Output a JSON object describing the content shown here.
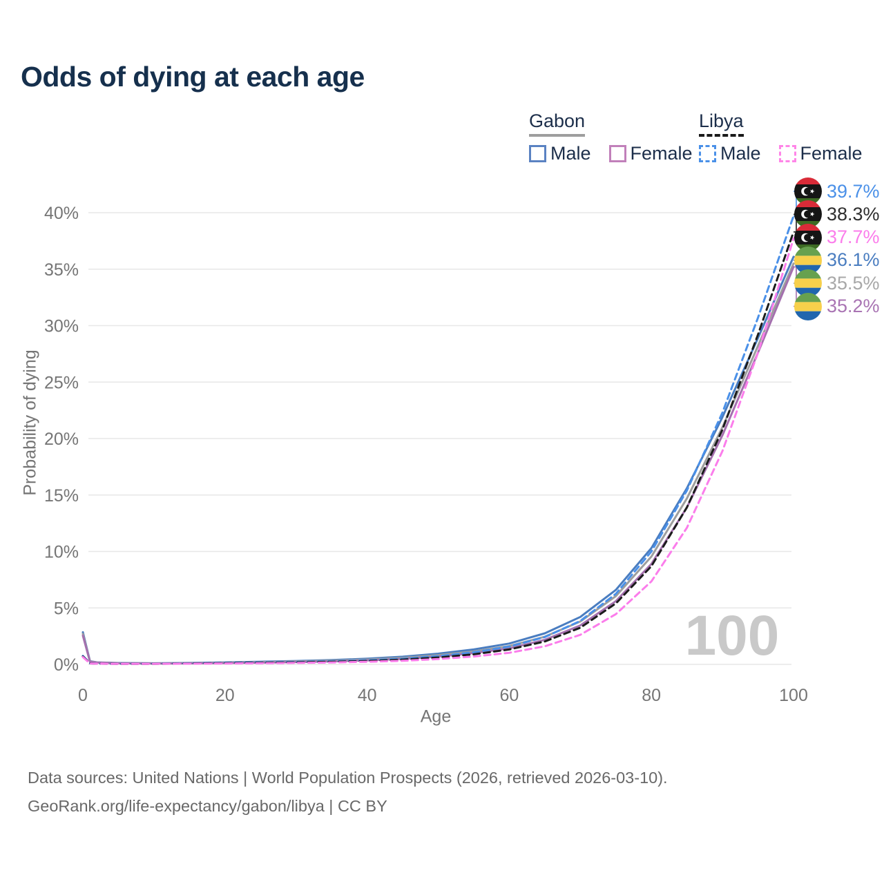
{
  "title": "Odds of dying at each age",
  "watermark_age": "100",
  "footer": {
    "line1": "Data sources: United Nations | World Population Prospects (2026, retrieved 2026-03-10).",
    "line2": "GeoRank.org/life-expectancy/gabon/libya | CC BY"
  },
  "legend": {
    "groups": [
      {
        "name": "Gabon",
        "underline_style": "solid",
        "underline_color": "#9e9e9e",
        "items": [
          {
            "label": "Male",
            "color": "#5a82c2",
            "dashed": false
          },
          {
            "label": "Female",
            "color": "#c180ba",
            "dashed": false
          }
        ]
      },
      {
        "name": "Libya",
        "underline_style": "dashed",
        "underline_color": "#1a1a1a",
        "items": [
          {
            "label": "Male",
            "color": "#4a90e8",
            "dashed": true
          },
          {
            "label": "Female",
            "color": "#ff85e8",
            "dashed": true
          }
        ]
      }
    ]
  },
  "flag_colors": {
    "libya": {
      "red": "#d92b38",
      "black": "#151515",
      "green": "#3e6b24",
      "white": "#ffffff"
    },
    "gabon": {
      "green": "#67a14f",
      "yellow": "#f7d04b",
      "blue": "#2166ae"
    }
  },
  "chart_data": {
    "type": "line",
    "title": "Odds of dying at each age",
    "xlabel": "Age",
    "ylabel": "Probability of dying",
    "xlim": [
      0,
      100
    ],
    "ylim": [
      0,
      40
    ],
    "x_tick_values": [
      0,
      20,
      40,
      60,
      80,
      100
    ],
    "x_ticks": [
      "0",
      "20",
      "40",
      "60",
      "80",
      "100"
    ],
    "y_tick_values": [
      0,
      5,
      10,
      15,
      20,
      25,
      30,
      35,
      40
    ],
    "y_ticks": [
      "0%",
      "5%",
      "10%",
      "15%",
      "20%",
      "25%",
      "30%",
      "35%",
      "40%"
    ],
    "grid": "horizontal",
    "legend_position": "top-right",
    "label_order": [
      "libya-male",
      "libya-all",
      "libya-female",
      "gabon-male",
      "gabon-all",
      "gabon-female"
    ],
    "series": [
      {
        "id": "gabon-male",
        "name": "Gabon Male",
        "country": "Gabon",
        "flag": "gabon",
        "color": "#4a7dc0",
        "label_color": "#4a7dc0",
        "dashed": false,
        "end_label": "36.1%",
        "points": [
          [
            0,
            2.85
          ],
          [
            1,
            0.28
          ],
          [
            2,
            0.18
          ],
          [
            5,
            0.12
          ],
          [
            10,
            0.1
          ],
          [
            15,
            0.13
          ],
          [
            20,
            0.18
          ],
          [
            25,
            0.24
          ],
          [
            30,
            0.3
          ],
          [
            35,
            0.38
          ],
          [
            40,
            0.5
          ],
          [
            45,
            0.68
          ],
          [
            50,
            0.95
          ],
          [
            55,
            1.32
          ],
          [
            60,
            1.85
          ],
          [
            65,
            2.75
          ],
          [
            70,
            4.2
          ],
          [
            75,
            6.6
          ],
          [
            80,
            10.3
          ],
          [
            85,
            15.6
          ],
          [
            90,
            21.9
          ],
          [
            95,
            28.9
          ],
          [
            100,
            36.1
          ]
        ]
      },
      {
        "id": "gabon-all",
        "name": "Gabon Both sexes",
        "country": "Gabon",
        "flag": "gabon",
        "color": "#9e9e9e",
        "label_color": "#a8a8a8",
        "dashed": false,
        "end_label": "35.5%",
        "points": [
          [
            0,
            2.7
          ],
          [
            1,
            0.26
          ],
          [
            2,
            0.17
          ],
          [
            5,
            0.11
          ],
          [
            10,
            0.09
          ],
          [
            15,
            0.11
          ],
          [
            20,
            0.15
          ],
          [
            25,
            0.2
          ],
          [
            30,
            0.26
          ],
          [
            35,
            0.33
          ],
          [
            40,
            0.43
          ],
          [
            45,
            0.58
          ],
          [
            50,
            0.82
          ],
          [
            55,
            1.15
          ],
          [
            60,
            1.62
          ],
          [
            65,
            2.45
          ],
          [
            70,
            3.8
          ],
          [
            75,
            6.05
          ],
          [
            80,
            9.55
          ],
          [
            85,
            14.7
          ],
          [
            90,
            21.0
          ],
          [
            95,
            28.2
          ],
          [
            100,
            35.5
          ]
        ]
      },
      {
        "id": "gabon-female",
        "name": "Gabon Female",
        "country": "Gabon",
        "flag": "gabon",
        "color": "#a470ae",
        "label_color": "#a974b3",
        "dashed": false,
        "end_label": "35.2%",
        "points": [
          [
            0,
            2.55
          ],
          [
            1,
            0.24
          ],
          [
            2,
            0.16
          ],
          [
            5,
            0.1
          ],
          [
            10,
            0.08
          ],
          [
            15,
            0.09
          ],
          [
            20,
            0.12
          ],
          [
            25,
            0.16
          ],
          [
            30,
            0.21
          ],
          [
            35,
            0.27
          ],
          [
            40,
            0.36
          ],
          [
            45,
            0.49
          ],
          [
            50,
            0.69
          ],
          [
            55,
            1.0
          ],
          [
            60,
            1.42
          ],
          [
            65,
            2.18
          ],
          [
            70,
            3.45
          ],
          [
            75,
            5.6
          ],
          [
            80,
            8.9
          ],
          [
            85,
            13.9
          ],
          [
            90,
            20.3
          ],
          [
            95,
            27.6
          ],
          [
            100,
            35.2
          ]
        ]
      },
      {
        "id": "libya-male",
        "name": "Libya Male",
        "country": "Libya",
        "flag": "libya",
        "color": "#4a90e8",
        "label_color": "#4a90e8",
        "dashed": true,
        "end_label": "39.7%",
        "points": [
          [
            0,
            0.75
          ],
          [
            1,
            0.1
          ],
          [
            2,
            0.07
          ],
          [
            5,
            0.05
          ],
          [
            10,
            0.06
          ],
          [
            15,
            0.09
          ],
          [
            20,
            0.14
          ],
          [
            25,
            0.18
          ],
          [
            30,
            0.22
          ],
          [
            35,
            0.28
          ],
          [
            40,
            0.37
          ],
          [
            45,
            0.51
          ],
          [
            50,
            0.73
          ],
          [
            55,
            1.07
          ],
          [
            60,
            1.58
          ],
          [
            65,
            2.42
          ],
          [
            70,
            3.85
          ],
          [
            75,
            6.25
          ],
          [
            80,
            10.0
          ],
          [
            85,
            15.4
          ],
          [
            90,
            22.3
          ],
          [
            95,
            30.7
          ],
          [
            100,
            39.7
          ]
        ]
      },
      {
        "id": "libya-all",
        "name": "Libya Both sexes",
        "country": "Libya",
        "flag": "libya",
        "color": "#1c1c1c",
        "label_color": "#2e2e2e",
        "dashed": true,
        "end_label": "38.3%",
        "points": [
          [
            0,
            0.7
          ],
          [
            1,
            0.09
          ],
          [
            2,
            0.06
          ],
          [
            5,
            0.05
          ],
          [
            10,
            0.05
          ],
          [
            15,
            0.08
          ],
          [
            20,
            0.11
          ],
          [
            25,
            0.14
          ],
          [
            30,
            0.18
          ],
          [
            35,
            0.23
          ],
          [
            40,
            0.3
          ],
          [
            45,
            0.42
          ],
          [
            50,
            0.61
          ],
          [
            55,
            0.89
          ],
          [
            60,
            1.32
          ],
          [
            65,
            2.03
          ],
          [
            70,
            3.25
          ],
          [
            75,
            5.4
          ],
          [
            80,
            8.7
          ],
          [
            85,
            13.9
          ],
          [
            90,
            20.8
          ],
          [
            95,
            29.2
          ],
          [
            100,
            38.3
          ]
        ]
      },
      {
        "id": "libya-female",
        "name": "Libya Female",
        "country": "Libya",
        "flag": "libya",
        "color": "#fb7deb",
        "label_color": "#fb7deb",
        "dashed": true,
        "end_label": "37.7%",
        "points": [
          [
            0,
            0.65
          ],
          [
            1,
            0.08
          ],
          [
            2,
            0.06
          ],
          [
            5,
            0.04
          ],
          [
            10,
            0.05
          ],
          [
            15,
            0.06
          ],
          [
            20,
            0.08
          ],
          [
            25,
            0.1
          ],
          [
            30,
            0.13
          ],
          [
            35,
            0.17
          ],
          [
            40,
            0.23
          ],
          [
            45,
            0.32
          ],
          [
            50,
            0.47
          ],
          [
            55,
            0.7
          ],
          [
            60,
            1.03
          ],
          [
            65,
            1.6
          ],
          [
            70,
            2.62
          ],
          [
            75,
            4.45
          ],
          [
            80,
            7.35
          ],
          [
            85,
            12.1
          ],
          [
            90,
            18.9
          ],
          [
            95,
            27.6
          ],
          [
            100,
            37.7
          ]
        ]
      }
    ]
  }
}
